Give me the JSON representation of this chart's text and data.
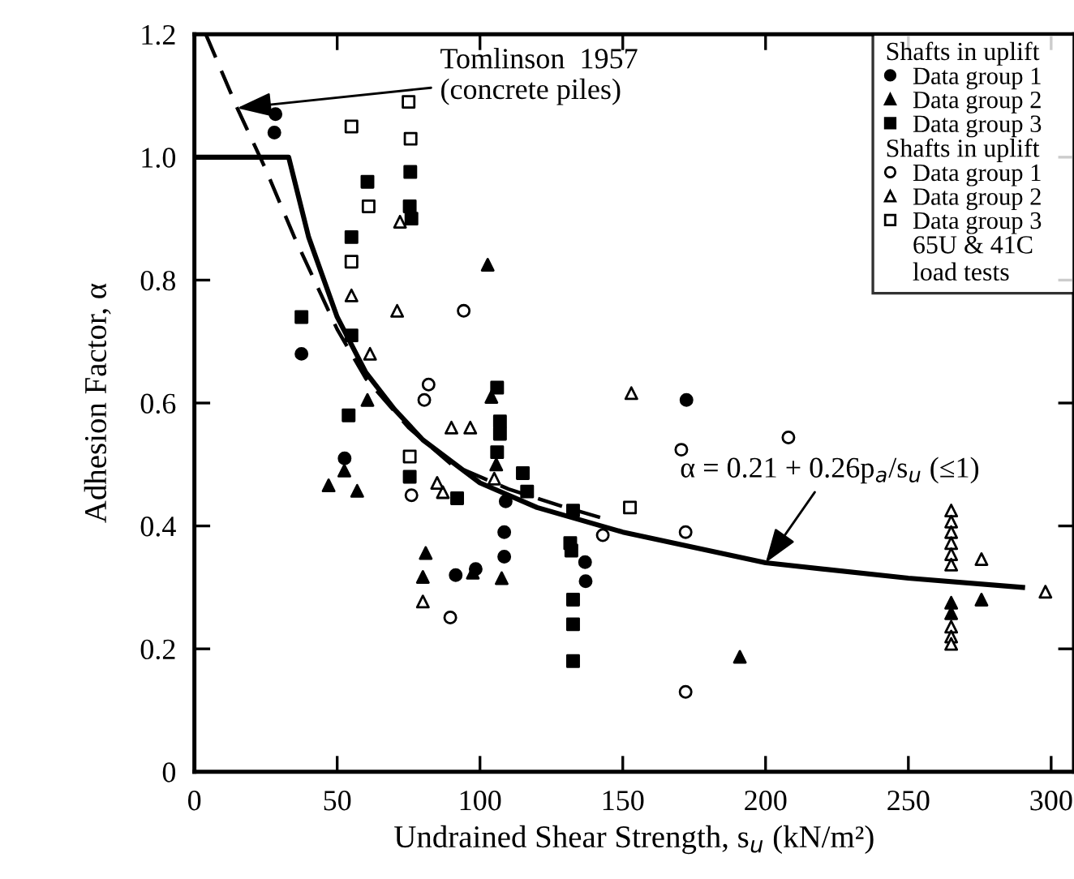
{
  "chart_data": {
    "type": "scatter",
    "xlabel": "Undrained Shear Strength, s$_{u}$ (kN/m²)",
    "ylabel": "Adhesion Factor, α",
    "xlim": [
      0,
      308
    ],
    "ylim": [
      0,
      1.2
    ],
    "xticks": [
      0,
      50,
      100,
      150,
      200,
      250,
      300
    ],
    "yticks": [
      0,
      0.2,
      0.4,
      0.6,
      0.8,
      {
        "value": 1.0,
        "label": "1.0"
      },
      1.2
    ],
    "grid": false,
    "legend": "top right",
    "legend_title": "Shafts in uplift",
    "annotations": [
      "Shafts in uplift",
      "65U & 41C\nload tests",
      {
        "text": "Tomlinson  1957\n(concrete piles)",
        "x": 15,
        "y": 1.08
      },
      {
        "text": "α = 0.21 + 0.26p$_{a}$/s$_{u}$ (≤1)",
        "x": 200,
        "y": 0.34
      }
    ],
    "series": [
      {
        "name": "Data group 1",
        "marker": "circle",
        "color": "#000000",
        "x": [
          28.4,
          28,
          37.5,
          52.6,
          91.5,
          108.5,
          108.5,
          98.5,
          109,
          136.8,
          137,
          172.3
        ],
        "values": [
          1.07,
          1.04,
          0.68,
          0.51,
          0.32,
          0.39,
          0.35,
          0.33,
          0.44,
          0.341,
          0.31,
          0.605
        ]
      },
      {
        "name": "Data group 2",
        "marker": "triangle",
        "color": "#000000",
        "x": [
          102.7,
          60.6,
          104,
          52.5,
          47,
          57,
          81,
          80,
          97.5,
          107.6,
          105.7,
          191,
          265,
          265,
          275.6
        ],
        "values": [
          0.825,
          0.605,
          0.61,
          0.49,
          0.466,
          0.457,
          0.356,
          0.317,
          0.324,
          0.315,
          0.5,
          0.187,
          0.275,
          0.258,
          0.28
        ]
      },
      {
        "name": "Data group 3",
        "marker": "square",
        "color": "#000000",
        "x": [
          37.5,
          60.6,
          75.6,
          75.4,
          76,
          55,
          55,
          54,
          106,
          107,
          75.4,
          92,
          116.5,
          106,
          107,
          115,
          132.6,
          131.6,
          132,
          132.6,
          132.6,
          132.6
        ],
        "values": [
          0.74,
          0.96,
          0.976,
          0.92,
          0.9,
          0.87,
          0.71,
          0.58,
          0.625,
          0.57,
          0.48,
          0.445,
          0.456,
          0.52,
          0.55,
          0.486,
          0.425,
          0.372,
          0.36,
          0.28,
          0.24,
          0.18
        ]
      },
      {
        "name": "Data group 1",
        "marker": "circle",
        "color": "#ffffff",
        "x": [
          94.3,
          82,
          80.5,
          76,
          89.6,
          143,
          172,
          172,
          170.5,
          208
        ],
        "values": [
          0.75,
          0.63,
          0.605,
          0.45,
          0.251,
          0.385,
          0.39,
          0.13,
          0.524,
          0.544
        ]
      },
      {
        "name": "Data group 2",
        "marker": "triangle",
        "color": "#ffffff",
        "x": [
          72,
          55,
          71,
          61.5,
          90,
          96.6,
          87,
          85,
          105,
          80,
          153,
          265,
          265,
          265,
          265,
          265,
          265,
          265,
          265,
          265,
          275.6,
          298
        ],
        "values": [
          0.895,
          0.775,
          0.75,
          0.68,
          0.56,
          0.56,
          0.455,
          0.47,
          0.477,
          0.277,
          0.616,
          0.425,
          0.407,
          0.39,
          0.372,
          0.354,
          0.337,
          0.236,
          0.22,
          0.208,
          0.346,
          0.293
        ]
      },
      {
        "name": "Data group 3",
        "marker": "square",
        "color": "#ffffff",
        "x": [
          75,
          55,
          75.7,
          61,
          55,
          75.4,
          152.5
        ],
        "values": [
          1.09,
          1.05,
          1.03,
          0.92,
          0.83,
          0.513,
          0.43
        ]
      },
      {
        "type": "line",
        "line_style": "solid",
        "marker": "none",
        "color": "#000000",
        "x": [
          0,
          33,
          40,
          50,
          60,
          70,
          80,
          100,
          120,
          150,
          200,
          250,
          290
        ],
        "values": [
          1,
          1,
          0.87,
          0.74,
          0.65,
          0.59,
          0.54,
          0.47,
          0.43,
          0.39,
          0.34,
          0.315,
          0.3
        ]
      },
      {
        "type": "line",
        "line_style": "dashed",
        "marker": "none",
        "color": "#000000",
        "x": [
          4,
          15,
          25,
          35,
          50,
          60,
          75,
          90,
          110,
          130,
          145
        ],
        "values": [
          1.2,
          1.08,
          0.98,
          0.87,
          0.72,
          0.64,
          0.56,
          0.5,
          0.46,
          0.43,
          0.41
        ]
      }
    ]
  }
}
